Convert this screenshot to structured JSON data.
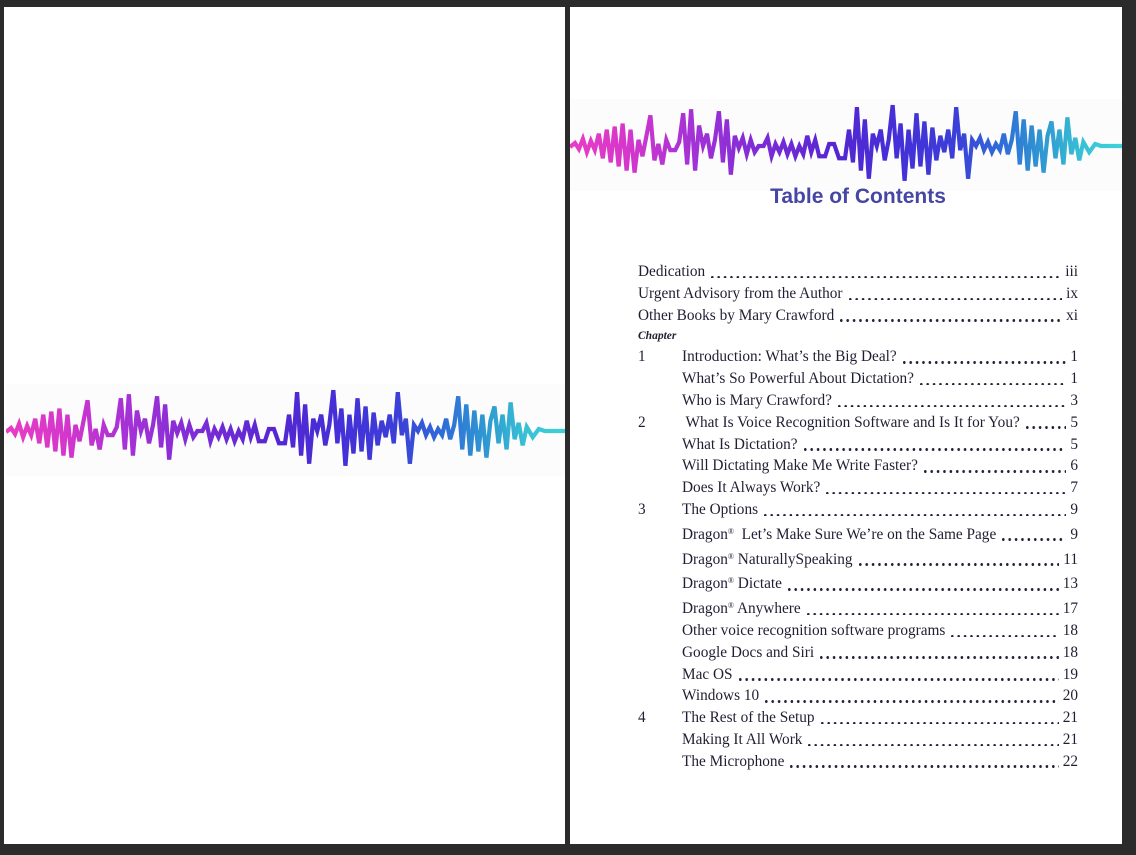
{
  "viewer": {
    "frame_color": "#2b2b2b",
    "page_color": "#ffffff"
  },
  "waveform": {
    "description": "audio-waveform zigzag graphic with left-to-right color gradient",
    "gradient_colors": [
      "#e83dc4",
      "#a432d6",
      "#5526d2",
      "#3c3fd8",
      "#2f6cd8",
      "#3ed2da"
    ]
  },
  "toc": {
    "title": "Table of Contents",
    "title_color": "#4646a5",
    "rows": [
      {
        "type": "front",
        "num": "",
        "title": "Dedication",
        "page": "iii"
      },
      {
        "type": "front",
        "num": "",
        "title": "Urgent Advisory from the Author",
        "page": "ix"
      },
      {
        "type": "front",
        "num": "",
        "title": "Other Books by Mary Crawford",
        "page": "xi"
      },
      {
        "type": "label",
        "num": "",
        "title": "Chapter",
        "page": ""
      },
      {
        "type": "chapter",
        "num": "1",
        "title": "Introduction: What’s the Big Deal?",
        "page": "1"
      },
      {
        "type": "sub",
        "num": "",
        "title": "What’s So Powerful About Dictation?",
        "page": "1"
      },
      {
        "type": "sub",
        "num": "",
        "title": "Who is Mary Crawford?",
        "page": "3"
      },
      {
        "type": "chapter",
        "num": "2",
        "title": " What Is Voice Recognition Software and Is It for You?",
        "page": "5"
      },
      {
        "type": "sub",
        "num": "",
        "title": "What Is Dictation?",
        "page": "5"
      },
      {
        "type": "sub",
        "num": "",
        "title": "Will Dictating Make Me Write Faster?",
        "page": "6"
      },
      {
        "type": "sub",
        "num": "",
        "title": "Does It Always Work?",
        "page": "7"
      },
      {
        "type": "chapter",
        "num": "3",
        "title": "The Options",
        "page": "9"
      },
      {
        "type": "sub",
        "num": "",
        "title": "Dragon®  Let’s Make Sure We’re on the Same Page",
        "page": "9"
      },
      {
        "type": "sub",
        "num": "",
        "title": "Dragon® NaturallySpeaking",
        "page": "11"
      },
      {
        "type": "sub",
        "num": "",
        "title": "Dragon® Dictate",
        "page": "13"
      },
      {
        "type": "sub",
        "num": "",
        "title": "Dragon® Anywhere",
        "page": "17"
      },
      {
        "type": "sub",
        "num": "",
        "title": "Other voice recognition software programs",
        "page": "18"
      },
      {
        "type": "sub",
        "num": "",
        "title": "Google Docs and Siri",
        "page": "18"
      },
      {
        "type": "sub",
        "num": "",
        "title": "Mac OS",
        "page": "19"
      },
      {
        "type": "sub",
        "num": "",
        "title": "Windows 10",
        "page": "20"
      },
      {
        "type": "chapter",
        "num": "4",
        "title": "The Rest of the Setup",
        "page": "21"
      },
      {
        "type": "sub",
        "num": "",
        "title": "Making It All Work",
        "page": "21"
      },
      {
        "type": "sub",
        "num": "",
        "title": "The Microphone",
        "page": "22"
      }
    ]
  }
}
